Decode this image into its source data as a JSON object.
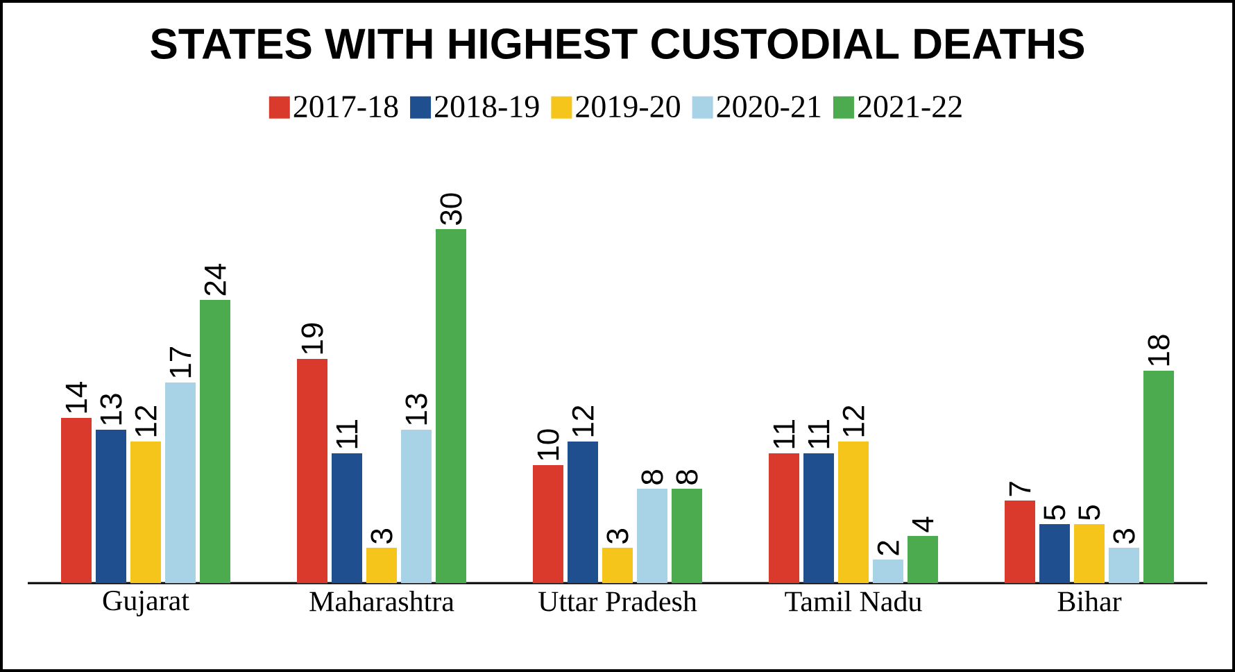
{
  "chart_data": {
    "type": "bar",
    "title": "STATES WITH HIGHEST CUSTODIAL DEATHS",
    "categories": [
      "Gujarat",
      "Maharashtra",
      "Uttar Pradesh",
      "Tamil Nadu",
      "Bihar"
    ],
    "series": [
      {
        "name": "2017-18",
        "color": "#d93a2b",
        "values": [
          14,
          19,
          10,
          11,
          7
        ]
      },
      {
        "name": "2018-19",
        "color": "#1f4f8f",
        "values": [
          13,
          11,
          12,
          11,
          5
        ]
      },
      {
        "name": "2019-20",
        "color": "#f6c51c",
        "values": [
          12,
          3,
          3,
          12,
          5
        ]
      },
      {
        "name": "2020-21",
        "color": "#a8d3e6",
        "values": [
          17,
          13,
          8,
          2,
          3
        ]
      },
      {
        "name": "2021-22",
        "color": "#4caa4f",
        "values": [
          24,
          30,
          8,
          4,
          18
        ]
      }
    ],
    "data_labels": true,
    "legend": "top"
  }
}
